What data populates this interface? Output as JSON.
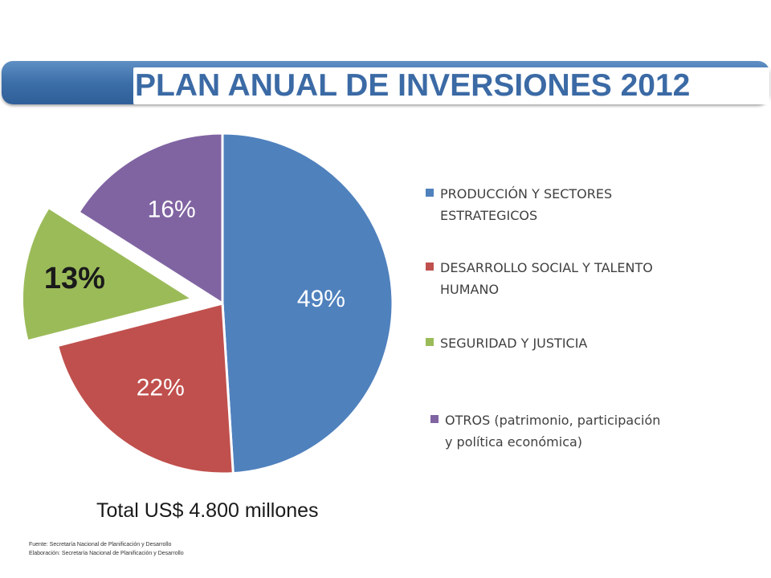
{
  "title": "PLAN ANUAL DE INVERSIONES 2012",
  "chart_data": {
    "type": "pie",
    "slices": [
      {
        "label": "PRODUCCIÓN Y SECTORES ESTRATEGICOS",
        "value": 49,
        "display": "49%",
        "color": "#4f81bd",
        "exploded": false
      },
      {
        "label": "DESARROLLO SOCIAL Y TALENTO HUMANO",
        "value": 22,
        "display": "22%",
        "color": "#c0504d",
        "exploded": false
      },
      {
        "label": "SEGURIDAD Y JUSTICIA",
        "value": 13,
        "display": "13%",
        "color": "#9bbb59",
        "exploded": true
      },
      {
        "label": "OTROS (patrimonio, participación y política económica)",
        "value": 16,
        "display": "16%",
        "color": "#8064a2",
        "exploded": false
      }
    ],
    "legend_position": "right"
  },
  "legend": [
    {
      "lines": [
        "PRODUCCIÓN Y SECTORES",
        "ESTRATEGICOS"
      ],
      "color": "#4f81bd"
    },
    {
      "lines": [
        "DESARROLLO SOCIAL Y TALENTO",
        "HUMANO"
      ],
      "color": "#c0504d"
    },
    {
      "lines": [
        "SEGURIDAD Y JUSTICIA"
      ],
      "color": "#9bbb59"
    },
    {
      "lines": [
        "OTROS (patrimonio, participación",
        "y política económica)"
      ],
      "color": "#8064a2"
    }
  ],
  "total": "Total US$ 4.800 millones",
  "source_line1": "Fuente: Secretaría Nacional de Planificación y Desarrollo",
  "source_line2": "Elaboración: Secretaría Nacional de Planificación y Desarrollo"
}
